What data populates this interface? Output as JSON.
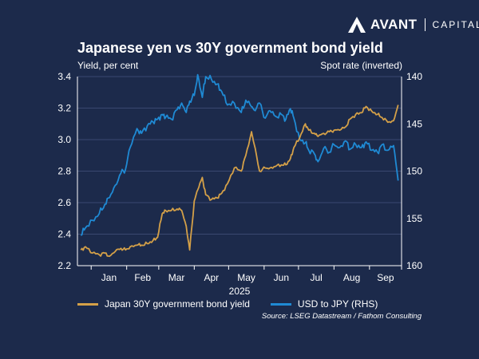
{
  "brand": {
    "name": "AVANT",
    "sub": "CAPITAL"
  },
  "chart_data": {
    "type": "line",
    "title": "Japanese yen vs 30Y government bond yield",
    "ylabel_left": "Yield, per cent",
    "ylabel_right": "Spot rate (inverted)",
    "xlabel": "2025",
    "x_ticks": [
      "Jan",
      "Feb",
      "Mar",
      "Apr",
      "May",
      "Jun",
      "Jul",
      "Aug",
      "Sep"
    ],
    "ylim_left": [
      2.2,
      3.4
    ],
    "y_ticks_left": [
      "2.2",
      "2.4",
      "2.6",
      "2.8",
      "3.0",
      "3.2",
      "3.4"
    ],
    "ylim_right": [
      160,
      140
    ],
    "y_ticks_right": [
      "140",
      "145",
      "150",
      "155",
      "160"
    ],
    "legend_position": "bottom",
    "series": [
      {
        "name": "Japan 30Y government bond yield",
        "axis": "left",
        "color": "#d4a048",
        "points": [
          [
            "2024-12-23",
            2.3
          ],
          [
            "2024-12-27",
            2.32
          ],
          [
            "2025-01-02",
            2.28
          ],
          [
            "2025-01-08",
            2.27
          ],
          [
            "2025-01-13",
            2.28
          ],
          [
            "2025-01-17",
            2.26
          ],
          [
            "2025-01-22",
            2.29
          ],
          [
            "2025-01-27",
            2.31
          ],
          [
            "2025-01-31",
            2.3
          ],
          [
            "2025-02-04",
            2.32
          ],
          [
            "2025-02-10",
            2.33
          ],
          [
            "2025-02-14",
            2.33
          ],
          [
            "2025-02-19",
            2.34
          ],
          [
            "2025-02-24",
            2.36
          ],
          [
            "2025-02-28",
            2.38
          ],
          [
            "2025-03-04",
            2.53
          ],
          [
            "2025-03-07",
            2.55
          ],
          [
            "2025-03-12",
            2.55
          ],
          [
            "2025-03-17",
            2.56
          ],
          [
            "2025-03-21",
            2.55
          ],
          [
            "2025-03-25",
            2.45
          ],
          [
            "2025-03-28",
            2.3
          ],
          [
            "2025-04-01",
            2.61
          ],
          [
            "2025-04-04",
            2.68
          ],
          [
            "2025-04-08",
            2.76
          ],
          [
            "2025-04-11",
            2.65
          ],
          [
            "2025-04-16",
            2.62
          ],
          [
            "2025-04-21",
            2.63
          ],
          [
            "2025-04-25",
            2.66
          ],
          [
            "2025-04-30",
            2.72
          ],
          [
            "2025-05-06",
            2.82
          ],
          [
            "2025-05-12",
            2.8
          ],
          [
            "2025-05-16",
            2.9
          ],
          [
            "2025-05-21",
            3.05
          ],
          [
            "2025-05-23",
            2.98
          ],
          [
            "2025-05-28",
            2.8
          ],
          [
            "2025-06-02",
            2.82
          ],
          [
            "2025-06-06",
            2.82
          ],
          [
            "2025-06-11",
            2.83
          ],
          [
            "2025-06-16",
            2.84
          ],
          [
            "2025-06-20",
            2.84
          ],
          [
            "2025-06-24",
            2.88
          ],
          [
            "2025-06-27",
            2.95
          ],
          [
            "2025-07-02",
            3.01
          ],
          [
            "2025-07-07",
            3.1
          ],
          [
            "2025-07-10",
            3.06
          ],
          [
            "2025-07-15",
            3.04
          ],
          [
            "2025-07-18",
            3.02
          ],
          [
            "2025-07-23",
            3.04
          ],
          [
            "2025-07-28",
            3.05
          ],
          [
            "2025-08-01",
            3.06
          ],
          [
            "2025-08-06",
            3.06
          ],
          [
            "2025-08-11",
            3.08
          ],
          [
            "2025-08-15",
            3.13
          ],
          [
            "2025-08-20",
            3.16
          ],
          [
            "2025-08-25",
            3.17
          ],
          [
            "2025-08-29",
            3.21
          ],
          [
            "2025-09-03",
            3.18
          ],
          [
            "2025-09-08",
            3.16
          ],
          [
            "2025-09-12",
            3.14
          ],
          [
            "2025-09-17",
            3.11
          ],
          [
            "2025-09-22",
            3.12
          ],
          [
            "2025-09-26",
            3.22
          ]
        ]
      },
      {
        "name": "USD to JPY (RHS)",
        "axis": "right",
        "color": "#1f8ad4",
        "points": [
          [
            "2024-12-23",
            156.8
          ],
          [
            "2024-12-27",
            156.0
          ],
          [
            "2025-01-02",
            155.2
          ],
          [
            "2025-01-08",
            154.5
          ],
          [
            "2025-01-13",
            153.5
          ],
          [
            "2025-01-17",
            152.8
          ],
          [
            "2025-01-22",
            151.5
          ],
          [
            "2025-01-27",
            150.2
          ],
          [
            "2025-01-31",
            149.8
          ],
          [
            "2025-02-04",
            147.5
          ],
          [
            "2025-02-10",
            145.5
          ],
          [
            "2025-02-14",
            146.0
          ],
          [
            "2025-02-19",
            145.2
          ],
          [
            "2025-02-24",
            144.8
          ],
          [
            "2025-02-28",
            144.5
          ],
          [
            "2025-03-04",
            144.0
          ],
          [
            "2025-03-07",
            144.3
          ],
          [
            "2025-03-12",
            144.5
          ],
          [
            "2025-03-17",
            143.5
          ],
          [
            "2025-03-21",
            142.8
          ],
          [
            "2025-03-25",
            143.8
          ],
          [
            "2025-03-28",
            142.6
          ],
          [
            "2025-04-01",
            142.0
          ],
          [
            "2025-04-04",
            139.8
          ],
          [
            "2025-04-08",
            142.2
          ],
          [
            "2025-04-11",
            140.0
          ],
          [
            "2025-04-16",
            140.3
          ],
          [
            "2025-04-21",
            140.8
          ],
          [
            "2025-04-25",
            141.6
          ],
          [
            "2025-04-30",
            143.0
          ],
          [
            "2025-05-06",
            142.8
          ],
          [
            "2025-05-12",
            143.8
          ],
          [
            "2025-05-16",
            142.5
          ],
          [
            "2025-05-21",
            143.2
          ],
          [
            "2025-05-23",
            143.5
          ],
          [
            "2025-05-28",
            142.8
          ],
          [
            "2025-06-02",
            144.4
          ],
          [
            "2025-06-06",
            143.6
          ],
          [
            "2025-06-11",
            144.2
          ],
          [
            "2025-06-16",
            144.0
          ],
          [
            "2025-06-20",
            144.5
          ],
          [
            "2025-06-24",
            143.4
          ],
          [
            "2025-06-27",
            144.4
          ],
          [
            "2025-07-02",
            146.6
          ],
          [
            "2025-07-07",
            147.0
          ],
          [
            "2025-07-10",
            147.8
          ],
          [
            "2025-07-15",
            148.2
          ],
          [
            "2025-07-18",
            149.0
          ],
          [
            "2025-07-23",
            147.6
          ],
          [
            "2025-07-28",
            148.0
          ],
          [
            "2025-08-01",
            147.2
          ],
          [
            "2025-08-06",
            147.5
          ],
          [
            "2025-08-11",
            146.8
          ],
          [
            "2025-08-15",
            147.7
          ],
          [
            "2025-08-20",
            147.2
          ],
          [
            "2025-08-25",
            147.5
          ],
          [
            "2025-08-29",
            146.9
          ],
          [
            "2025-09-03",
            147.8
          ],
          [
            "2025-09-08",
            148.0
          ],
          [
            "2025-09-12",
            147.2
          ],
          [
            "2025-09-17",
            147.8
          ],
          [
            "2025-09-22",
            147.3
          ],
          [
            "2025-09-26",
            151.0
          ]
        ]
      }
    ],
    "source": "Source: LSEG Datastream / Fathom Consulting"
  }
}
